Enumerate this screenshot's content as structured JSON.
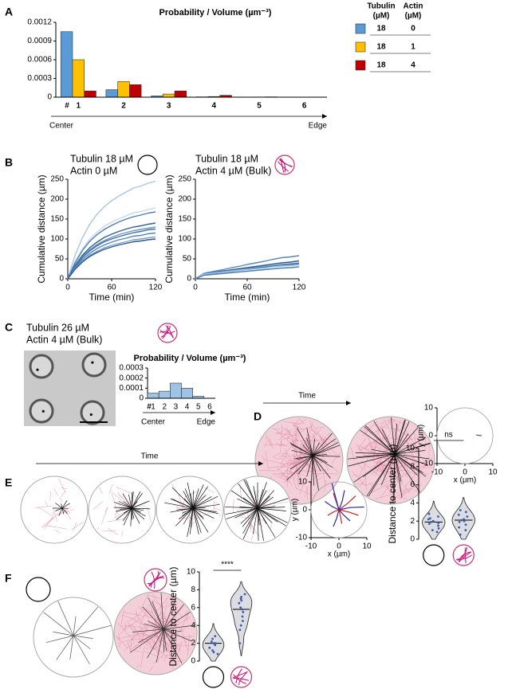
{
  "chart_data": [
    {
      "panel": "A",
      "type": "bar",
      "title": "Probability / Volume (µm⁻³)",
      "categories": [
        "1",
        "2",
        "3",
        "4",
        "5",
        "6"
      ],
      "category_marker": "#",
      "axis_start": "Center",
      "axis_end": "Edge",
      "legend_header": [
        [
          "Tubulin",
          "(µM)"
        ],
        [
          "Actin",
          "(µM)"
        ]
      ],
      "series": [
        {
          "color": "#5b9bd5",
          "legend": [
            "18",
            "0"
          ],
          "values": [
            0.00105,
            0.00012,
            2e-05,
            5e-06,
            0,
            0
          ]
        },
        {
          "color": "#ffc000",
          "legend": [
            "18",
            "1"
          ],
          "values": [
            0.0006,
            0.00025,
            5e-05,
            1e-05,
            3e-06,
            0
          ]
        },
        {
          "color": "#c00000",
          "legend": [
            "18",
            "4"
          ],
          "values": [
            0.0001,
            0.0002,
            0.0001,
            3e-05,
            5e-06,
            0
          ]
        }
      ],
      "ylim": [
        0,
        0.0012
      ],
      "yticks": [
        0,
        0.0003,
        0.0006,
        0.0009,
        0.0012
      ]
    },
    {
      "panel": "B",
      "type": "line",
      "condition": [
        "Tubulin 18 µM",
        "Actin 0 µM"
      ],
      "xlabel": "Time (min)",
      "ylabel": "Cumulative distance (µm)",
      "x": [
        0,
        10,
        20,
        30,
        40,
        50,
        60,
        70,
        80,
        90,
        100,
        110,
        120
      ],
      "xlim": [
        0,
        120
      ],
      "xticks": [
        0,
        60,
        120
      ],
      "ylim": [
        0,
        250
      ],
      "yticks": [
        0,
        50,
        100,
        150,
        200,
        250
      ],
      "series": [
        {
          "color": "#a9c4e4",
          "values": [
            0,
            59,
            103,
            137,
            162,
            181,
            196,
            208,
            218,
            228,
            233,
            240,
            245
          ]
        },
        {
          "color": "#c8d8ee",
          "values": [
            0,
            43,
            75,
            100,
            117,
            132,
            142,
            151,
            158,
            166,
            169,
            174,
            178
          ]
        },
        {
          "color": "#4a7fb5",
          "values": [
            0,
            40,
            71,
            94,
            111,
            124,
            134,
            143,
            150,
            156,
            160,
            165,
            168
          ]
        },
        {
          "color": "#2e5f94",
          "values": [
            0,
            34,
            59,
            78,
            92,
            104,
            112,
            119,
            125,
            130,
            133,
            137,
            140
          ]
        },
        {
          "color": "#6b96c8",
          "values": [
            0,
            31,
            55,
            73,
            86,
            96,
            104,
            111,
            116,
            121,
            124,
            127,
            130
          ]
        },
        {
          "color": "#3d6fa3",
          "values": [
            0,
            30,
            53,
            70,
            83,
            93,
            100,
            106,
            111,
            116,
            119,
            123,
            125
          ]
        },
        {
          "color": "#5585bb",
          "values": [
            0,
            28,
            48,
            64,
            76,
            85,
            92,
            98,
            102,
            107,
            109,
            113,
            115
          ]
        },
        {
          "color": "#7aa2d0",
          "values": [
            0,
            25,
            44,
            59,
            69,
            78,
            84,
            89,
            93,
            98,
            100,
            103,
            105
          ]
        },
        {
          "color": "#2a568a",
          "values": [
            0,
            24,
            42,
            56,
            66,
            74,
            80,
            85,
            89,
            93,
            95,
            98,
            100
          ]
        }
      ]
    },
    {
      "type": "line",
      "condition": [
        "Tubulin 18 µM",
        "Actin 4 µM (Bulk)"
      ],
      "xlabel": "Time (min)",
      "ylabel": "Cumulative distance (µm)",
      "x": [
        0,
        10,
        20,
        30,
        40,
        50,
        60,
        70,
        80,
        90,
        100,
        110,
        120
      ],
      "xlim": [
        0,
        120
      ],
      "xticks": [
        0,
        60,
        120
      ],
      "ylim": [
        0,
        250
      ],
      "yticks": [
        0,
        50,
        100,
        150,
        200,
        250
      ],
      "series": [
        {
          "color": "#5585bb",
          "values": [
            0,
            14,
            18,
            22,
            27,
            31,
            36,
            40,
            44,
            49,
            53,
            55,
            58
          ]
        },
        {
          "color": "#2e5f94",
          "values": [
            0,
            12,
            15,
            19,
            22,
            25,
            28,
            31,
            34,
            37,
            40,
            42,
            45
          ]
        },
        {
          "color": "#7aa2d0",
          "values": [
            0,
            11,
            14,
            17,
            20,
            22,
            25,
            28,
            31,
            33,
            36,
            38,
            40
          ]
        },
        {
          "color": "#3d6fa3",
          "values": [
            0,
            10,
            13,
            16,
            18,
            21,
            24,
            27,
            29,
            32,
            34,
            36,
            38
          ]
        },
        {
          "color": "#a9c4e4",
          "values": [
            0,
            12,
            14,
            16,
            18,
            21,
            23,
            25,
            27,
            30,
            32,
            33,
            35
          ]
        },
        {
          "color": "#4a7fb5",
          "values": [
            0,
            9,
            11,
            13,
            15,
            17,
            19,
            21,
            23,
            25,
            27,
            28,
            30
          ]
        }
      ]
    },
    {
      "panel": "C",
      "type": "bar",
      "condition": [
        "Tubulin 26 µM",
        "Actin 4 µM (Bulk)"
      ],
      "title": "Probability / Volume (µm⁻³)",
      "categories": [
        "1",
        "2",
        "3",
        "4",
        "5",
        "6"
      ],
      "category_marker": "#",
      "axis_start": "Center",
      "axis_end": "Edge",
      "color": "#9dc3e6",
      "values": [
        5e-05,
        7e-05,
        0.00015,
        0.0001,
        2e-05,
        0
      ],
      "ylim": [
        0,
        0.0003
      ],
      "yticks": [
        0,
        0.0001,
        0.0002,
        0.0003
      ]
    },
    {
      "panel": "D",
      "type": "line",
      "time_label": "Time",
      "xlabel": "x (µm)",
      "ylabel": "y (µm)",
      "xlim": [
        -10,
        10
      ],
      "xticks": [
        -10,
        0,
        10
      ],
      "ylim": [
        -10,
        10
      ],
      "yticks": [
        -10,
        0,
        10
      ],
      "series": [
        {
          "color": "#7a3b9a",
          "x": [
            4,
            4.5,
            5,
            5.5,
            6
          ],
          "values": [
            0.3,
            0.2,
            0.1,
            0.05,
            0
          ]
        }
      ]
    },
    {
      "panel": "E",
      "type": "line",
      "time_label": "Time",
      "xlabel": "x (µm)",
      "ylabel": "y (µm)",
      "xlim": [
        -10,
        10
      ],
      "xticks": [
        -10,
        0,
        10
      ],
      "ylim": [
        -10,
        10
      ],
      "yticks": [
        -10,
        0,
        10
      ],
      "series": [
        {
          "color": "#2a2a9a",
          "x": [
            0,
            4,
            9
          ],
          "values": [
            0,
            0.8,
            1
          ]
        },
        {
          "color": "#d0202a",
          "x": [
            0,
            3,
            6
          ],
          "values": [
            0,
            2.2,
            5
          ]
        },
        {
          "color": "#2a2a9a",
          "x": [
            0,
            1.2,
            2
          ],
          "values": [
            0,
            3.2,
            7
          ]
        },
        {
          "color": "#d0202a",
          "x": [
            0,
            -1,
            -2
          ],
          "values": [
            0,
            3,
            6
          ]
        },
        {
          "color": "#2a2a9a",
          "x": [
            0,
            -2.5,
            -5
          ],
          "values": [
            0,
            1.2,
            3
          ]
        },
        {
          "color": "#d0202a",
          "x": [
            0,
            -2,
            -4
          ],
          "values": [
            0,
            -0.8,
            -2
          ]
        },
        {
          "color": "#2a2a9a",
          "x": [
            0,
            -0.8,
            -2
          ],
          "values": [
            0,
            -3,
            -6
          ]
        },
        {
          "color": "#d0202a",
          "x": [
            0,
            0.6,
            1
          ],
          "values": [
            0,
            -2.5,
            -5
          ]
        },
        {
          "color": "#2a2a9a",
          "x": [
            0,
            2,
            4
          ],
          "values": [
            0,
            -2.2,
            -4
          ]
        },
        {
          "color": "#d0202a",
          "x": [
            0,
            3.5,
            7
          ],
          "values": [
            0,
            -0.8,
            -2
          ]
        },
        {
          "color": "#2a2a9a",
          "x": [
            0,
            -1.2,
            -2.5
          ],
          "values": [
            0,
            4.5,
            9.5
          ]
        }
      ]
    },
    {
      "type": "violin",
      "ylabel": "Distance to center (µm)",
      "annotation": "ns",
      "ylim": [
        0,
        10
      ],
      "yticks": [
        0,
        2,
        4,
        6,
        8,
        10
      ],
      "series": [
        {
          "color": "#3b5ba5",
          "values": [
            1.2,
            1.5,
            1.8,
            2.0,
            2.2,
            2.5,
            1.0,
            1.7,
            2.8,
            0.8,
            1.9,
            2.3
          ]
        },
        {
          "color": "#3b5ba5",
          "values": [
            1.0,
            1.6,
            2.0,
            2.2,
            2.5,
            3.0,
            1.3,
            1.9,
            2.7,
            0.5,
            2.1,
            3.2
          ]
        }
      ]
    },
    {
      "panel": "F",
      "type": "violin",
      "ylabel": "Distance to center (µm)",
      "annotation": "****",
      "ylim": [
        0,
        10
      ],
      "yticks": [
        0,
        2,
        4,
        6,
        8,
        10
      ],
      "series": [
        {
          "color": "#3b5ba5",
          "values": [
            1.0,
            1.5,
            2.0,
            2.2,
            2.5,
            1.8,
            0.8,
            2.8,
            1.2,
            2.0
          ]
        },
        {
          "color": "#3b5ba5",
          "values": [
            2.0,
            3.5,
            4.5,
            5.0,
            5.8,
            6.0,
            6.5,
            7.0,
            7.2,
            7.5,
            6.8,
            5.5,
            4.0
          ]
        }
      ]
    }
  ]
}
